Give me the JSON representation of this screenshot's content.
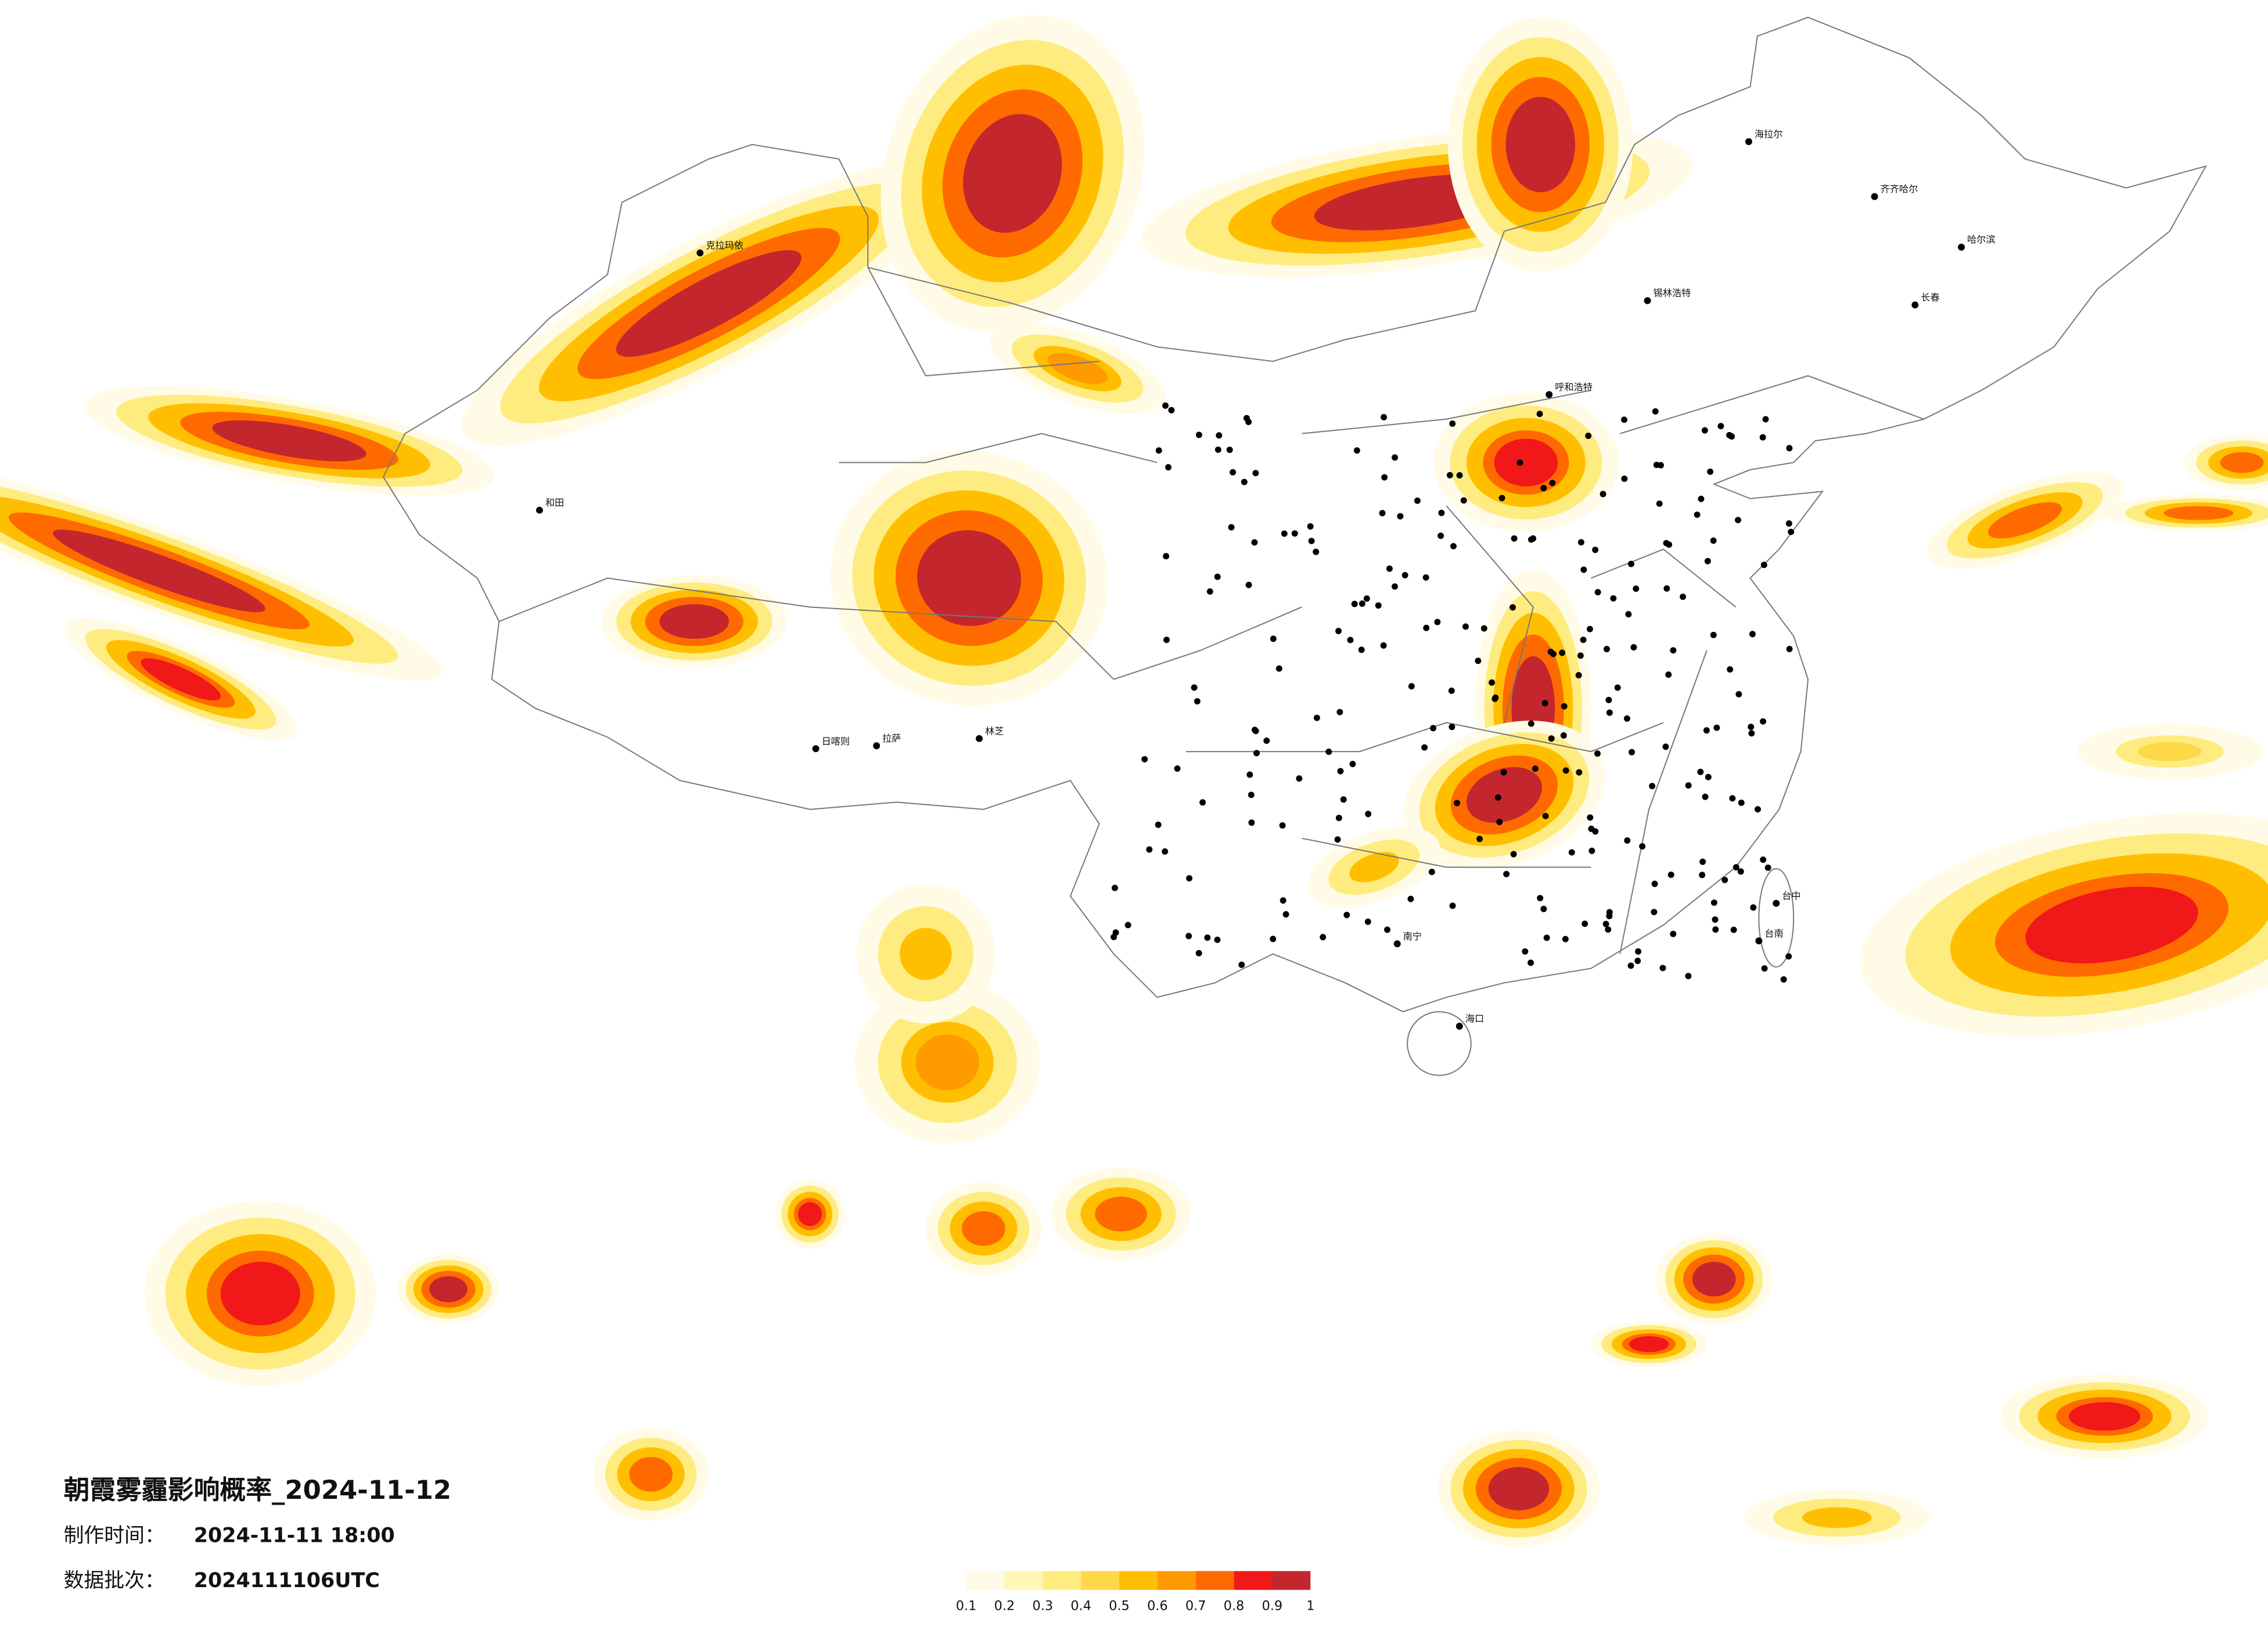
{
  "title": "朝霞雾霾影响概率_2024-11-12",
  "info": [
    {
      "label": "制作时间：",
      "value": "2024-11-11 18:00"
    },
    {
      "label": "数据批次：",
      "value": "2024111106UTC"
    }
  ],
  "legend": {
    "ticks": [
      "0.1",
      "0.2",
      "0.3",
      "0.4",
      "0.5",
      "0.6",
      "0.7",
      "0.8",
      "0.9",
      "1"
    ],
    "colors": [
      "#fffbe6",
      "#fff6b8",
      "#ffec80",
      "#ffd84a",
      "#ffbf00",
      "#ff9a00",
      "#ff6a00",
      "#f01818",
      "#c4262e"
    ]
  },
  "cities": [
    "海拉尔",
    "齐齐哈尔",
    "哈尔滨",
    "长春",
    "锡林浩特",
    "呼和浩特",
    "克拉玛依",
    "和田",
    "日喀则",
    "拉萨",
    "林芝",
    "南宁",
    "海口",
    "台中",
    "台南"
  ]
}
